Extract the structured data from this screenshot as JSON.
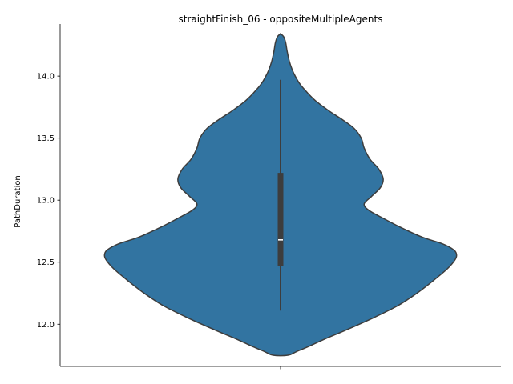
{
  "chart_data": {
    "type": "violin",
    "title": "straightFinish_06 - oppositeMultipleAgents",
    "xlabel": "",
    "ylabel": "PathDuration",
    "ylim": [
      11.66,
      14.42
    ],
    "yticks": [
      12.0,
      12.5,
      13.0,
      13.5,
      14.0
    ],
    "ytick_labels": [
      "12.0",
      "12.5",
      "13.0",
      "13.5",
      "14.0"
    ],
    "xticks": [
      ""
    ],
    "grid": false,
    "colors": {
      "body": "#3274a1",
      "outline": "#3d3d3d",
      "box": "#3d3d3d",
      "median": "#ffffff"
    },
    "stats": {
      "whisker_low": 12.11,
      "q1": 12.47,
      "median": 12.68,
      "q3": 13.22,
      "whisker_high": 13.97
    },
    "density": {
      "y": [
        11.75,
        11.78,
        11.82,
        11.88,
        11.95,
        12.05,
        12.15,
        12.25,
        12.35,
        12.45,
        12.52,
        12.56,
        12.6,
        12.65,
        12.7,
        12.78,
        12.86,
        12.92,
        12.97,
        13.03,
        13.1,
        13.17,
        13.25,
        13.33,
        13.42,
        13.5,
        13.58,
        13.65,
        13.72,
        13.8,
        13.87,
        13.94,
        14.0,
        14.05,
        14.12,
        14.2,
        14.27,
        14.32,
        14.34
      ],
      "half_width": [
        0.05,
        0.11,
        0.19,
        0.3,
        0.44,
        0.63,
        0.8,
        0.93,
        1.04,
        1.14,
        1.19,
        1.2,
        1.18,
        1.1,
        0.97,
        0.82,
        0.69,
        0.6,
        0.57,
        0.62,
        0.68,
        0.7,
        0.67,
        0.61,
        0.57,
        0.55,
        0.5,
        0.42,
        0.33,
        0.24,
        0.18,
        0.13,
        0.1,
        0.08,
        0.06,
        0.045,
        0.035,
        0.02,
        0.0
      ]
    }
  }
}
